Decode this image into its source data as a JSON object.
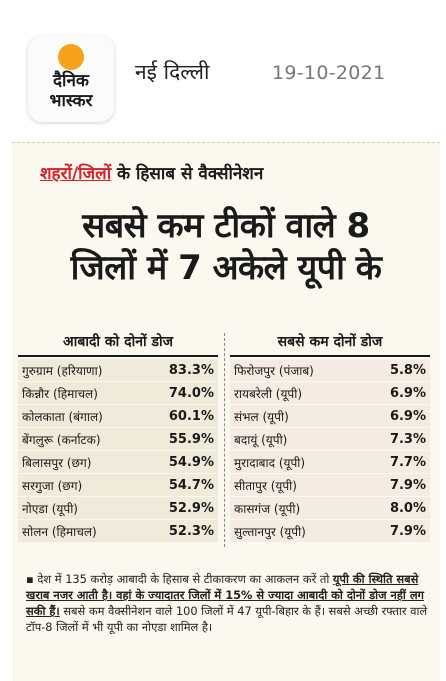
{
  "header": {
    "logo_line1": "दैनिक",
    "logo_line2": "भास्कर",
    "city": "नई दिल्ली",
    "date": "19-10-2021"
  },
  "article": {
    "subtitle_highlight": "शहरों/जिलों",
    "subtitle_rest": " के हिसाब से वैक्सीनेशन",
    "headline_line1": "सबसे कम टीकों वाले 8",
    "headline_line2": "जिलों में 7 अकेले यूपी के"
  },
  "table": {
    "left_title": "आबादी को दोनों डोज",
    "right_title": "सबसे कम दोनों डोज",
    "left_rows": [
      {
        "name": "गुरुग्राम (हरियाणा)",
        "value": "83.3%"
      },
      {
        "name": "किन्नौर (हिमाचल)",
        "value": "74.0%"
      },
      {
        "name": "कोलकाता (बंगाल)",
        "value": "60.1%"
      },
      {
        "name": "बेंगलुरू (कर्नाटक)",
        "value": "55.9%"
      },
      {
        "name": "बिलासपुर (छग)",
        "value": "54.9%"
      },
      {
        "name": "सरगुजा (छग)",
        "value": "54.7%"
      },
      {
        "name": "नोएडा (यूपी)",
        "value": "52.9%"
      },
      {
        "name": "सोलन (हिमाचल)",
        "value": "52.3%"
      }
    ],
    "right_rows": [
      {
        "name": "फिरोजपुर (पंजाब)",
        "value": "5.8%"
      },
      {
        "name": "रायबरेली (यूपी)",
        "value": "6.9%"
      },
      {
        "name": "संभल (यूपी)",
        "value": "6.9%"
      },
      {
        "name": "बदायूं (यूपी)",
        "value": "7.3%"
      },
      {
        "name": "मुरादाबाद (यूपी)",
        "value": "7.7%"
      },
      {
        "name": "सीतापुर (यूपी)",
        "value": "7.9%"
      },
      {
        "name": "कासगंज (यूपी)",
        "value": "8.0%"
      },
      {
        "name": "सुल्तानपुर (यूपी)",
        "value": "7.9%"
      }
    ]
  },
  "note": {
    "part1": "▪ देश में 135 करोड़ आबादी के हिसाब से टीकाकरण का आकलन करें तो ",
    "part2": "यूपी की स्थिति सबसे खराब नजर आती है। वहां के ज्यादातर जिलों में 15% से ज्यादा आबादी को दोनों डोज नहीं लग सकी हैं।",
    "part3": " सबसे कम वैक्सीनेशन वाले 100 जिलों में 47 यूपी-बिहार के हैं। सबसे अच्छी रफ्तार वाले टॉप-8 जिलों में भी यूपी का नोएडा शामिल है।"
  }
}
